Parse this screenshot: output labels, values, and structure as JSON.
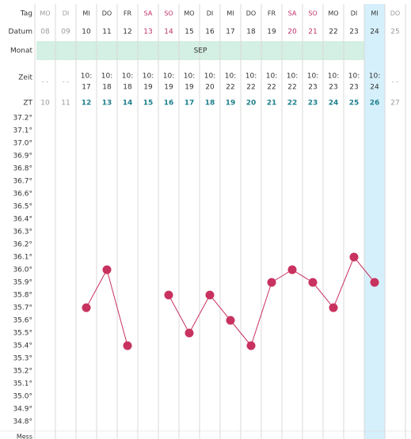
{
  "labels": {
    "tag": "Tag",
    "datum": "Datum",
    "monat": "Monat",
    "zeit": "Zeit",
    "zt": "ZT",
    "bottom": "Mess"
  },
  "month": "SEP",
  "columns": [
    {
      "day": "MO",
      "date": "08",
      "time": [
        "- -",
        ""
      ],
      "zt": "10",
      "active": false
    },
    {
      "day": "DI",
      "date": "09",
      "time": [
        "- -",
        ""
      ],
      "zt": "11",
      "active": false
    },
    {
      "day": "MI",
      "date": "10",
      "time": [
        "10:",
        "17"
      ],
      "zt": "12",
      "active": true
    },
    {
      "day": "DO",
      "date": "11",
      "time": [
        "10:",
        "18"
      ],
      "zt": "13",
      "active": true
    },
    {
      "day": "FR",
      "date": "12",
      "time": [
        "10:",
        "18"
      ],
      "zt": "14",
      "active": true
    },
    {
      "day": "SA",
      "date": "13",
      "time": [
        "10:",
        "19"
      ],
      "zt": "15",
      "active": true,
      "weekend": true
    },
    {
      "day": "SO",
      "date": "14",
      "time": [
        "10:",
        "19"
      ],
      "zt": "16",
      "active": true,
      "weekend": true
    },
    {
      "day": "MO",
      "date": "15",
      "time": [
        "10:",
        "19"
      ],
      "zt": "17",
      "active": true
    },
    {
      "day": "DI",
      "date": "16",
      "time": [
        "10:",
        "20"
      ],
      "zt": "18",
      "active": true
    },
    {
      "day": "MI",
      "date": "17",
      "time": [
        "10:",
        "22"
      ],
      "zt": "19",
      "active": true
    },
    {
      "day": "DO",
      "date": "18",
      "time": [
        "10:",
        "22"
      ],
      "zt": "20",
      "active": true
    },
    {
      "day": "FR",
      "date": "19",
      "time": [
        "10:",
        "22"
      ],
      "zt": "21",
      "active": true
    },
    {
      "day": "SA",
      "date": "20",
      "time": [
        "10:",
        "22"
      ],
      "zt": "22",
      "active": true,
      "weekend": true
    },
    {
      "day": "SO",
      "date": "21",
      "time": [
        "10:",
        "23"
      ],
      "zt": "23",
      "active": true,
      "weekend": true
    },
    {
      "day": "MO",
      "date": "22",
      "time": [
        "10:",
        "23"
      ],
      "zt": "24",
      "active": true
    },
    {
      "day": "DI",
      "date": "23",
      "time": [
        "10:",
        "23"
      ],
      "zt": "25",
      "active": true
    },
    {
      "day": "MI",
      "date": "24",
      "time": [
        "10:",
        "24"
      ],
      "zt": "26",
      "active": true,
      "today": true
    },
    {
      "day": "DO",
      "date": "25",
      "time": [
        "- -",
        ""
      ],
      "zt": "27",
      "active": false
    }
  ],
  "colors": {
    "line": "#c8325f",
    "marker": "#c8325f",
    "weekend": "#c0306a",
    "zt_active": "#1c7f8c",
    "month_band": "#d4efe3",
    "today_band": "#d6f0fb",
    "grid": "#d9d9d9",
    "text": "#333333",
    "muted": "#9a9a9a"
  },
  "chart_data": {
    "type": "line",
    "title": "",
    "xlabel": "ZT",
    "ylabel": "",
    "categories": [
      "10",
      "11",
      "12",
      "13",
      "14",
      "15",
      "16",
      "17",
      "18",
      "19",
      "20",
      "21",
      "22",
      "23",
      "24",
      "25",
      "26",
      "27"
    ],
    "y_ticks": [
      "37.2°",
      "37.1°",
      "37.0°",
      "36.9°",
      "36.8°",
      "36.7°",
      "36.6°",
      "36.5°",
      "36.4°",
      "36.3°",
      "36.2°",
      "36.1°",
      "36.0°",
      "35.9°",
      "35.8°",
      "35.7°",
      "35.6°",
      "35.5°",
      "35.4°",
      "35.3°",
      "35.2°",
      "35.1°",
      "35.0°",
      "34.9°",
      "34.8°"
    ],
    "ylim": [
      34.8,
      37.2
    ],
    "grid": true,
    "series": [
      {
        "values": [
          null,
          null,
          35.7,
          36.0,
          35.4,
          null,
          35.8,
          35.5,
          35.8,
          35.6,
          35.4,
          35.9,
          36.0,
          35.9,
          35.7,
          36.1,
          35.9,
          null
        ]
      }
    ]
  }
}
